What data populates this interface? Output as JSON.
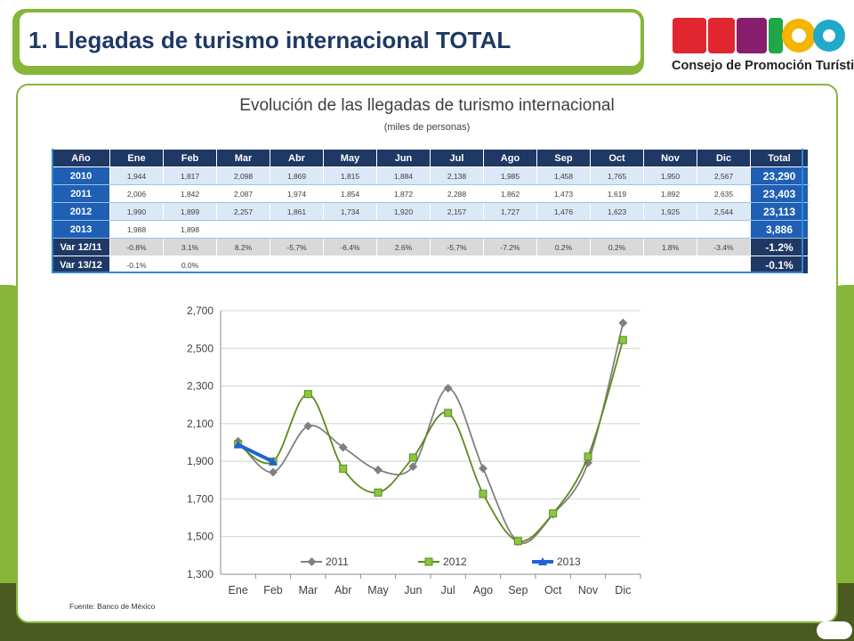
{
  "header": {
    "title": "1. Llegadas de turismo internacional TOTAL",
    "logo_word": "MÉXICO",
    "logo_subtitle": "Consejo de Promoción Turística"
  },
  "panel": {
    "title": "Evolución de las llegadas de turismo internacional",
    "subtitle": "(miles de personas)"
  },
  "table": {
    "headers": [
      "Año",
      "Ene",
      "Feb",
      "Mar",
      "Abr",
      "May",
      "Jun",
      "Jul",
      "Ago",
      "Sep",
      "Oct",
      "Nov",
      "Dic",
      "Total"
    ],
    "rows": [
      {
        "label": "2010",
        "values": [
          "1,944",
          "1,817",
          "2,098",
          "1,869",
          "1,815",
          "1,884",
          "2,138",
          "1,985",
          "1,458",
          "1,765",
          "1,950",
          "2,567"
        ],
        "total": "23,290"
      },
      {
        "label": "2011",
        "values": [
          "2,006",
          "1,842",
          "2,087",
          "1,974",
          "1,854",
          "1,872",
          "2,288",
          "1,862",
          "1,473",
          "1,619",
          "1,892",
          "2,635"
        ],
        "total": "23,403"
      },
      {
        "label": "2012",
        "values": [
          "1,990",
          "1,899",
          "2,257",
          "1,861",
          "1,734",
          "1,920",
          "2,157",
          "1,727",
          "1,476",
          "1,623",
          "1,925",
          "2,544"
        ],
        "total": "23,113"
      },
      {
        "label": "2013",
        "values": [
          "1,988",
          "1,898",
          "",
          "",
          "",
          "",
          "",
          "",
          "",
          "",
          "",
          ""
        ],
        "total": "3,886"
      },
      {
        "label": "Var 12/11",
        "values": [
          "-0.8%",
          "3.1%",
          "8.2%",
          "-5.7%",
          "-6.4%",
          "2.6%",
          "-5.7%",
          "-7.2%",
          "0.2%",
          "0.2%",
          "1.8%",
          "-3.4%"
        ],
        "total": "-1.2%"
      },
      {
        "label": "Var 13/12",
        "values": [
          "-0.1%",
          "0.0%",
          "",
          "",
          "",
          "",
          "",
          "",
          "",
          "",
          "",
          ""
        ],
        "total": "-0.1%"
      }
    ]
  },
  "chart_data": {
    "type": "line",
    "categories": [
      "Ene",
      "Feb",
      "Mar",
      "Abr",
      "May",
      "Jun",
      "Jul",
      "Ago",
      "Sep",
      "Oct",
      "Nov",
      "Dic"
    ],
    "series": [
      {
        "name": "2011",
        "values": [
          2006,
          1842,
          2087,
          1974,
          1854,
          1872,
          2288,
          1862,
          1473,
          1619,
          1892,
          2635
        ],
        "color": "#808080"
      },
      {
        "name": "2012",
        "values": [
          1990,
          1899,
          2257,
          1861,
          1734,
          1920,
          2157,
          1727,
          1476,
          1623,
          1925,
          2544
        ],
        "color": "#5a8a1e"
      },
      {
        "name": "2013",
        "values": [
          1988,
          1898,
          null,
          null,
          null,
          null,
          null,
          null,
          null,
          null,
          null,
          null
        ],
        "color": "#1f63d4"
      }
    ],
    "yticks": [
      "2,700",
      "2,500",
      "2,300",
      "2,100",
      "1,900",
      "1,700",
      "1,500",
      "1,300"
    ],
    "ylim": [
      1300,
      2700
    ],
    "legend_position": "bottom-inside",
    "grid": true
  },
  "source": "Fuente: Banco de México",
  "colors": {
    "accent": "#86b63a",
    "navy": "#1f3864",
    "blue": "#1f5fb4"
  }
}
